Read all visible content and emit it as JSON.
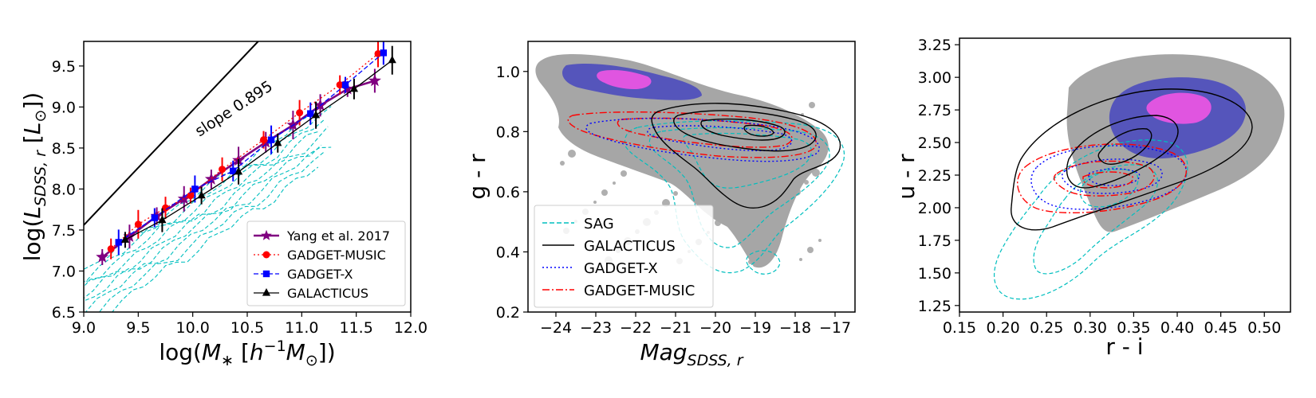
{
  "chart_data": [
    {
      "type": "scatter",
      "panel": "left",
      "xlabel_parts": [
        "log(",
        "M",
        "∗",
        " [",
        "h",
        "−1",
        "M",
        "⊙",
        "])"
      ],
      "ylabel_parts": [
        "log(",
        "L",
        "SDSS, r",
        "  [",
        "L",
        "⊙",
        "])"
      ],
      "xlim": [
        9.0,
        12.0
      ],
      "ylim": [
        6.5,
        9.8
      ],
      "xticks": [
        9.0,
        9.5,
        10.0,
        10.5,
        11.0,
        11.5,
        12.0
      ],
      "xtick_labels": [
        "9.0",
        "9.5",
        "10.0",
        "10.5",
        "11.0",
        "11.5",
        "12.0"
      ],
      "yticks": [
        6.5,
        7.0,
        7.5,
        8.0,
        8.5,
        9.0,
        9.5
      ],
      "ytick_labels": [
        "6.5",
        "7.0",
        "7.5",
        "8.0",
        "8.5",
        "9.0",
        "9.5"
      ],
      "annotation": "slope 0.895",
      "reference_line": {
        "x": [
          9.0,
          10.6
        ],
        "y": [
          7.56,
          9.8
        ],
        "color": "#000000"
      },
      "legend_position": "lower right",
      "series": [
        {
          "name": "Yang et al. 2017",
          "color": "#800080",
          "linestyle": "solid",
          "marker": "star",
          "x": [
            9.17,
            9.42,
            9.67,
            9.92,
            10.17,
            10.42,
            10.67,
            10.92,
            11.17,
            11.42,
            11.67
          ],
          "y": [
            7.17,
            7.42,
            7.67,
            7.88,
            8.12,
            8.35,
            8.57,
            8.78,
            9.02,
            9.22,
            9.32
          ]
        },
        {
          "name": "GADGET-MUSIC",
          "color": "#ff0000",
          "linestyle": "dotted",
          "marker": "circle",
          "x": [
            9.25,
            9.5,
            9.75,
            9.98,
            10.27,
            10.65,
            10.98,
            11.35,
            11.7
          ],
          "y": [
            7.27,
            7.57,
            7.77,
            7.92,
            8.24,
            8.6,
            8.93,
            9.27,
            9.65
          ]
        },
        {
          "name": "GADGET-X",
          "color": "#0000ff",
          "linestyle": "dashed",
          "marker": "square",
          "x": [
            9.32,
            9.65,
            10.02,
            10.37,
            10.72,
            11.08,
            11.4,
            11.75
          ],
          "y": [
            7.35,
            7.65,
            8.0,
            8.22,
            8.6,
            8.92,
            9.27,
            9.66
          ]
        },
        {
          "name": "GALACTICUS",
          "color": "#000000",
          "linestyle": "solid",
          "marker": "triangle",
          "x": [
            9.38,
            9.72,
            10.08,
            10.42,
            10.78,
            11.13,
            11.48,
            11.83
          ],
          "y": [
            7.38,
            7.62,
            7.92,
            8.21,
            8.56,
            8.9,
            9.22,
            9.57
          ]
        }
      ],
      "sag_contour_color": "#00bfbf"
    },
    {
      "type": "heatmap",
      "panel": "middle",
      "xlabel_parts": [
        "Mag",
        "SDSS, r"
      ],
      "ylabel": "g - r",
      "xlim": [
        -24.7,
        -16.5
      ],
      "ylim": [
        0.2,
        1.1
      ],
      "xticks": [
        -24,
        -23,
        -22,
        -21,
        -20,
        -19,
        -18,
        -17
      ],
      "xtick_labels": [
        "−24",
        "−23",
        "−22",
        "−21",
        "−20",
        "−19",
        "−18",
        "−17"
      ],
      "yticks": [
        0.2,
        0.4,
        0.6,
        0.8,
        1.0
      ],
      "ytick_labels": [
        "0.2",
        "0.4",
        "0.6",
        "0.8",
        "1.0"
      ],
      "fill_colors": [
        "#a6a6a6",
        "#5555bb",
        "#e055e0"
      ],
      "legend_position": "lower left",
      "legend": [
        {
          "name": "SAG",
          "color": "#00bfbf",
          "linestyle": "dashed"
        },
        {
          "name": "GALACTICUS",
          "color": "#000000",
          "linestyle": "solid"
        },
        {
          "name": "GADGET-X",
          "color": "#0000ff",
          "linestyle": "dotted"
        },
        {
          "name": "GADGET-MUSIC",
          "color": "#ff0000",
          "linestyle": "dashdot"
        }
      ]
    },
    {
      "type": "heatmap",
      "panel": "right",
      "xlabel": "r - i",
      "ylabel": "u - r",
      "xlim": [
        0.15,
        0.53
      ],
      "ylim": [
        1.2,
        3.3
      ],
      "xticks": [
        0.15,
        0.2,
        0.25,
        0.3,
        0.35,
        0.4,
        0.45,
        0.5
      ],
      "xtick_labels": [
        "0.15",
        "0.20",
        "0.25",
        "0.30",
        "0.35",
        "0.40",
        "0.45",
        "0.50"
      ],
      "yticks": [
        1.25,
        1.5,
        1.75,
        2.0,
        2.25,
        2.5,
        2.75,
        3.0,
        3.25
      ],
      "ytick_labels": [
        "1.25",
        "1.50",
        "1.75",
        "2.00",
        "2.25",
        "2.50",
        "2.75",
        "3.00",
        "3.25"
      ],
      "fill_colors": [
        "#a6a6a6",
        "#5555bb",
        "#e055e0"
      ]
    }
  ]
}
